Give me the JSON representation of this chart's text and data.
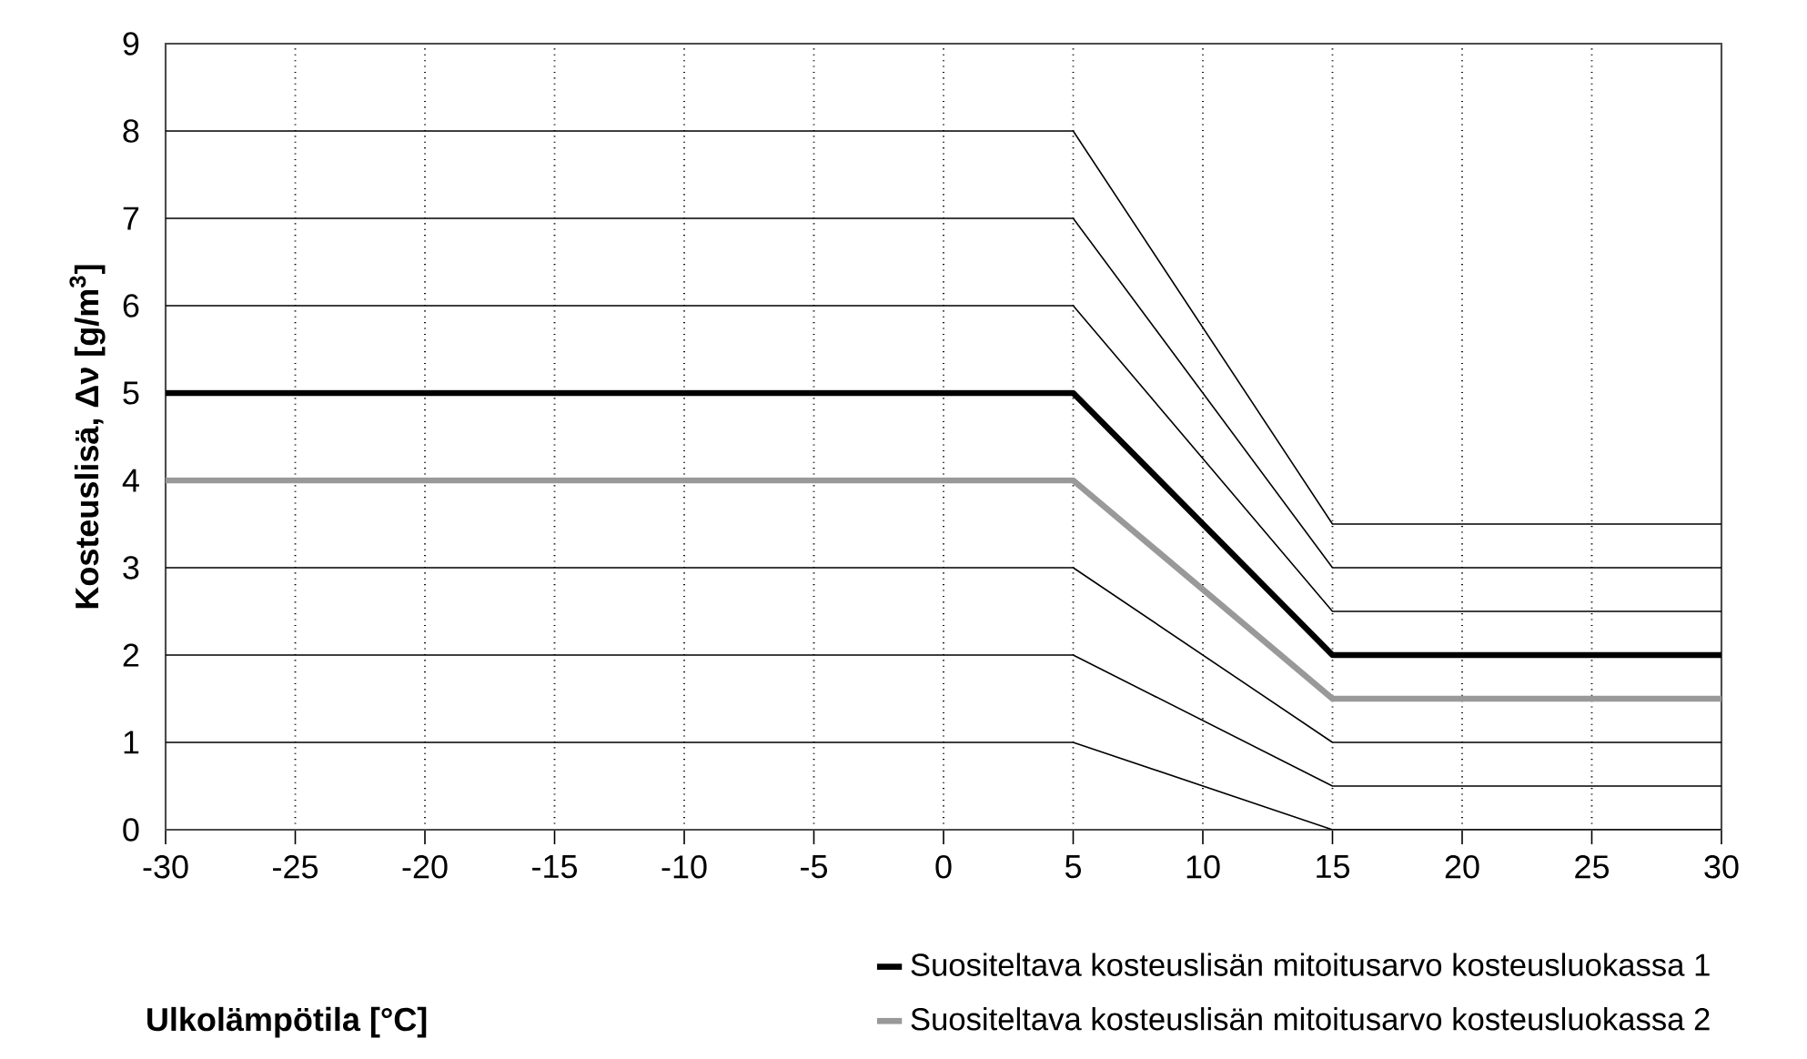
{
  "chart_data": {
    "type": "line",
    "xlabel": "Ulkolämpötila [°C]",
    "ylabel": "Kosteuslisä, Δν [g/m$^{3}$]",
    "xlim": [
      -30,
      30
    ],
    "ylim": [
      0,
      9
    ],
    "xticks": [
      -30,
      -25,
      -20,
      -15,
      -10,
      -5,
      0,
      5,
      10,
      15,
      20,
      25,
      30
    ],
    "yticks": [
      0,
      1,
      2,
      3,
      4,
      5,
      6,
      7,
      8,
      9
    ],
    "grid": "x",
    "legend": "bottom",
    "marker": "none",
    "line_style": "solid",
    "series": [
      {
        "color": "#000000",
        "x": [
          -30,
          5,
          15,
          30
        ],
        "values": [
          8,
          8,
          3.5,
          3.5
        ]
      },
      {
        "color": "#000000",
        "x": [
          -30,
          5,
          15,
          30
        ],
        "values": [
          7,
          7,
          3,
          3
        ]
      },
      {
        "color": "#000000",
        "x": [
          -30,
          5,
          15,
          30
        ],
        "values": [
          6,
          6,
          2.5,
          2.5
        ]
      },
      {
        "color": "#000000",
        "x": [
          -30,
          5,
          15,
          30
        ],
        "values": [
          3,
          3,
          1,
          1
        ]
      },
      {
        "color": "#000000",
        "x": [
          -30,
          5,
          15,
          30
        ],
        "values": [
          2,
          2,
          0.5,
          0.5
        ]
      },
      {
        "color": "#000000",
        "x": [
          -30,
          5,
          15,
          30
        ],
        "values": [
          1,
          1,
          0,
          0
        ]
      },
      {
        "name": "Suositeltava kosteuslisän mitoitusarvo kosteusluokassa 1",
        "color": "#000000",
        "x": [
          -30,
          5,
          15,
          30
        ],
        "values": [
          5,
          5,
          2,
          2
        ]
      },
      {
        "name": "Suositeltava kosteuslisän mitoitusarvo kosteusluokassa 2",
        "color": "#999999",
        "x": [
          -30,
          5,
          15,
          30
        ],
        "values": [
          4,
          4,
          1.5,
          1.5
        ]
      }
    ]
  }
}
